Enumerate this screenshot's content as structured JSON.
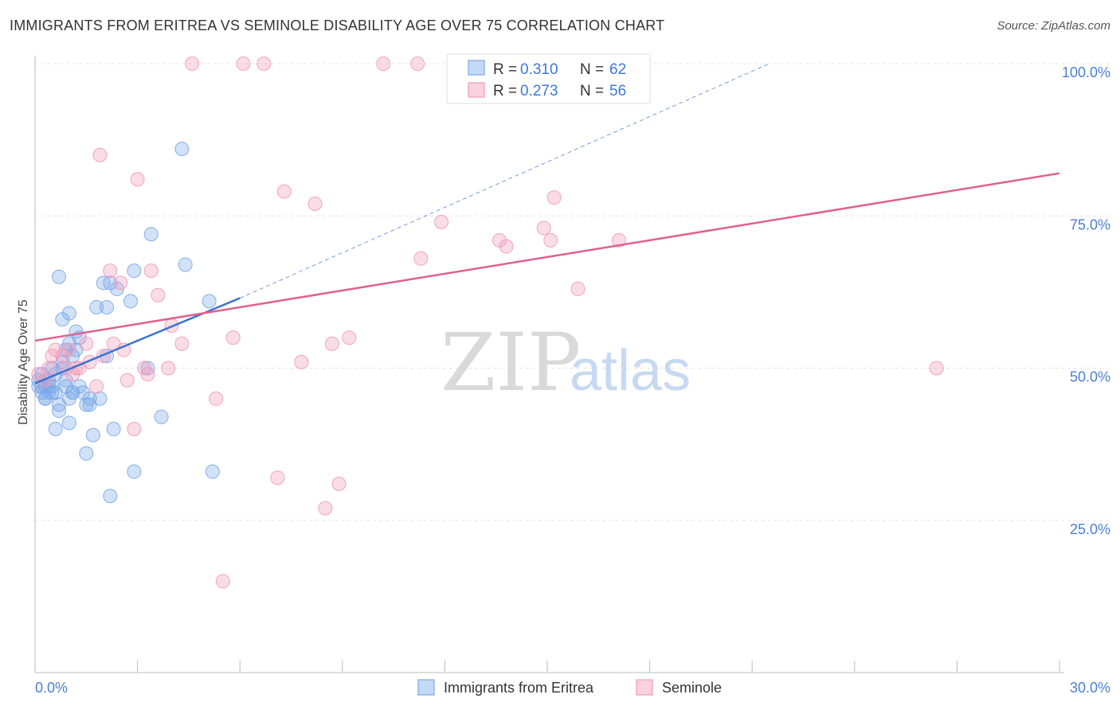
{
  "title": "IMMIGRANTS FROM ERITREA VS SEMINOLE DISABILITY AGE OVER 75 CORRELATION CHART",
  "source": "Source: ZipAtlas.com",
  "watermark": {
    "zip": "ZIP",
    "atlas": "atlas"
  },
  "colors": {
    "blue": "#7aa9e8",
    "blue_line": "#3a72d0",
    "pink": "#f29ab9",
    "pink_line": "#e0608e",
    "tick": "#4a7fd4"
  },
  "legend": {
    "rows": [
      {
        "r_label": "R =",
        "r_value": "0.310",
        "n_label": "N =",
        "n_value": "62"
      },
      {
        "r_label": "R =",
        "r_value": "0.273",
        "n_label": "N =",
        "n_value": "56"
      }
    ]
  },
  "bottom_legend": [
    "Immigrants from Eritrea",
    "Seminole"
  ],
  "chart_data": {
    "type": "scatter",
    "ylabel": "Disability Age Over 75",
    "xlim": [
      0,
      30
    ],
    "ylim": [
      0,
      100
    ],
    "x_tick_labels": [
      {
        "value": 0,
        "label": "0.0%"
      },
      {
        "value": 30,
        "label": "30.0%"
      }
    ],
    "y_tick_labels": [
      {
        "value": 25,
        "label": "25.0%"
      },
      {
        "value": 50,
        "label": "50.0%"
      },
      {
        "value": 75,
        "label": "75.0%"
      },
      {
        "value": 100,
        "label": "100.0%"
      }
    ],
    "series": [
      {
        "name": "Immigrants from Eritrea",
        "color": "#7aa9e8",
        "trend": {
          "x": [
            0,
            6
          ],
          "y": [
            47.5,
            61.5
          ],
          "dashed_to": [
            21.5,
            100
          ]
        },
        "points": [
          [
            0.1,
            48
          ],
          [
            0.1,
            47
          ],
          [
            0.2,
            49
          ],
          [
            0.2,
            46
          ],
          [
            0.3,
            47
          ],
          [
            0.3,
            45
          ],
          [
            0.4,
            46
          ],
          [
            0.4,
            48
          ],
          [
            0.5,
            47
          ],
          [
            0.5,
            50
          ],
          [
            0.6,
            49
          ],
          [
            0.6,
            46
          ],
          [
            0.7,
            44
          ],
          [
            0.7,
            43
          ],
          [
            0.8,
            51
          ],
          [
            0.8,
            58
          ],
          [
            0.8,
            50
          ],
          [
            0.9,
            53
          ],
          [
            0.9,
            48
          ],
          [
            1.0,
            54
          ],
          [
            1.0,
            59
          ],
          [
            1.0,
            45
          ],
          [
            1.1,
            52
          ],
          [
            1.1,
            46
          ],
          [
            1.2,
            53
          ],
          [
            1.2,
            56
          ],
          [
            1.3,
            47
          ],
          [
            1.3,
            55
          ],
          [
            1.4,
            46
          ],
          [
            1.5,
            44
          ],
          [
            1.6,
            45
          ],
          [
            1.7,
            39
          ],
          [
            1.8,
            60
          ],
          [
            1.9,
            45
          ],
          [
            2.0,
            64
          ],
          [
            2.1,
            60
          ],
          [
            2.1,
            52
          ],
          [
            2.2,
            64
          ],
          [
            2.3,
            40
          ],
          [
            2.4,
            63
          ],
          [
            2.8,
            61
          ],
          [
            2.9,
            33
          ],
          [
            2.9,
            66
          ],
          [
            3.3,
            50
          ],
          [
            3.4,
            72
          ],
          [
            3.7,
            42
          ],
          [
            4.3,
            86
          ],
          [
            4.4,
            67
          ],
          [
            5.1,
            61
          ],
          [
            5.2,
            33
          ],
          [
            0.3,
            45
          ],
          [
            0.4,
            47
          ],
          [
            0.6,
            40
          ],
          [
            0.7,
            65
          ],
          [
            1.0,
            41
          ],
          [
            1.5,
            36
          ],
          [
            2.2,
            29
          ],
          [
            0.5,
            46
          ],
          [
            0.2,
            47
          ],
          [
            0.9,
            47
          ],
          [
            1.1,
            46
          ],
          [
            1.6,
            44
          ]
        ]
      },
      {
        "name": "Seminole",
        "color": "#f29ab9",
        "trend": {
          "x": [
            0,
            30
          ],
          "y": [
            54.5,
            82
          ]
        },
        "points": [
          [
            0.1,
            49
          ],
          [
            0.3,
            48
          ],
          [
            0.4,
            50
          ],
          [
            0.6,
            53
          ],
          [
            0.8,
            52
          ],
          [
            0.9,
            50
          ],
          [
            1.0,
            53
          ],
          [
            1.1,
            49
          ],
          [
            1.3,
            50
          ],
          [
            1.5,
            54
          ],
          [
            1.6,
            51
          ],
          [
            1.8,
            47
          ],
          [
            1.9,
            85
          ],
          [
            2.0,
            52
          ],
          [
            2.3,
            54
          ],
          [
            2.5,
            64
          ],
          [
            2.6,
            53
          ],
          [
            2.7,
            48
          ],
          [
            2.9,
            40
          ],
          [
            3.0,
            81
          ],
          [
            3.2,
            50
          ],
          [
            3.3,
            49
          ],
          [
            3.4,
            66
          ],
          [
            3.6,
            62
          ],
          [
            3.9,
            50
          ],
          [
            4.0,
            57
          ],
          [
            4.3,
            54
          ],
          [
            4.6,
            100
          ],
          [
            5.3,
            45
          ],
          [
            5.5,
            15
          ],
          [
            5.8,
            55
          ],
          [
            6.1,
            100
          ],
          [
            6.7,
            100
          ],
          [
            7.1,
            32
          ],
          [
            7.3,
            79
          ],
          [
            7.8,
            51
          ],
          [
            8.2,
            77
          ],
          [
            8.5,
            27
          ],
          [
            8.7,
            54
          ],
          [
            8.9,
            31
          ],
          [
            9.2,
            55
          ],
          [
            10.2,
            100
          ],
          [
            11.2,
            100
          ],
          [
            11.3,
            68
          ],
          [
            11.9,
            74
          ],
          [
            13.6,
            71
          ],
          [
            13.8,
            70
          ],
          [
            14.9,
            73
          ],
          [
            15.1,
            71
          ],
          [
            15.2,
            78
          ],
          [
            15.9,
            63
          ],
          [
            17.1,
            71
          ],
          [
            26.4,
            50
          ],
          [
            0.5,
            52
          ],
          [
            1.2,
            50
          ],
          [
            2.2,
            66
          ]
        ]
      }
    ]
  }
}
